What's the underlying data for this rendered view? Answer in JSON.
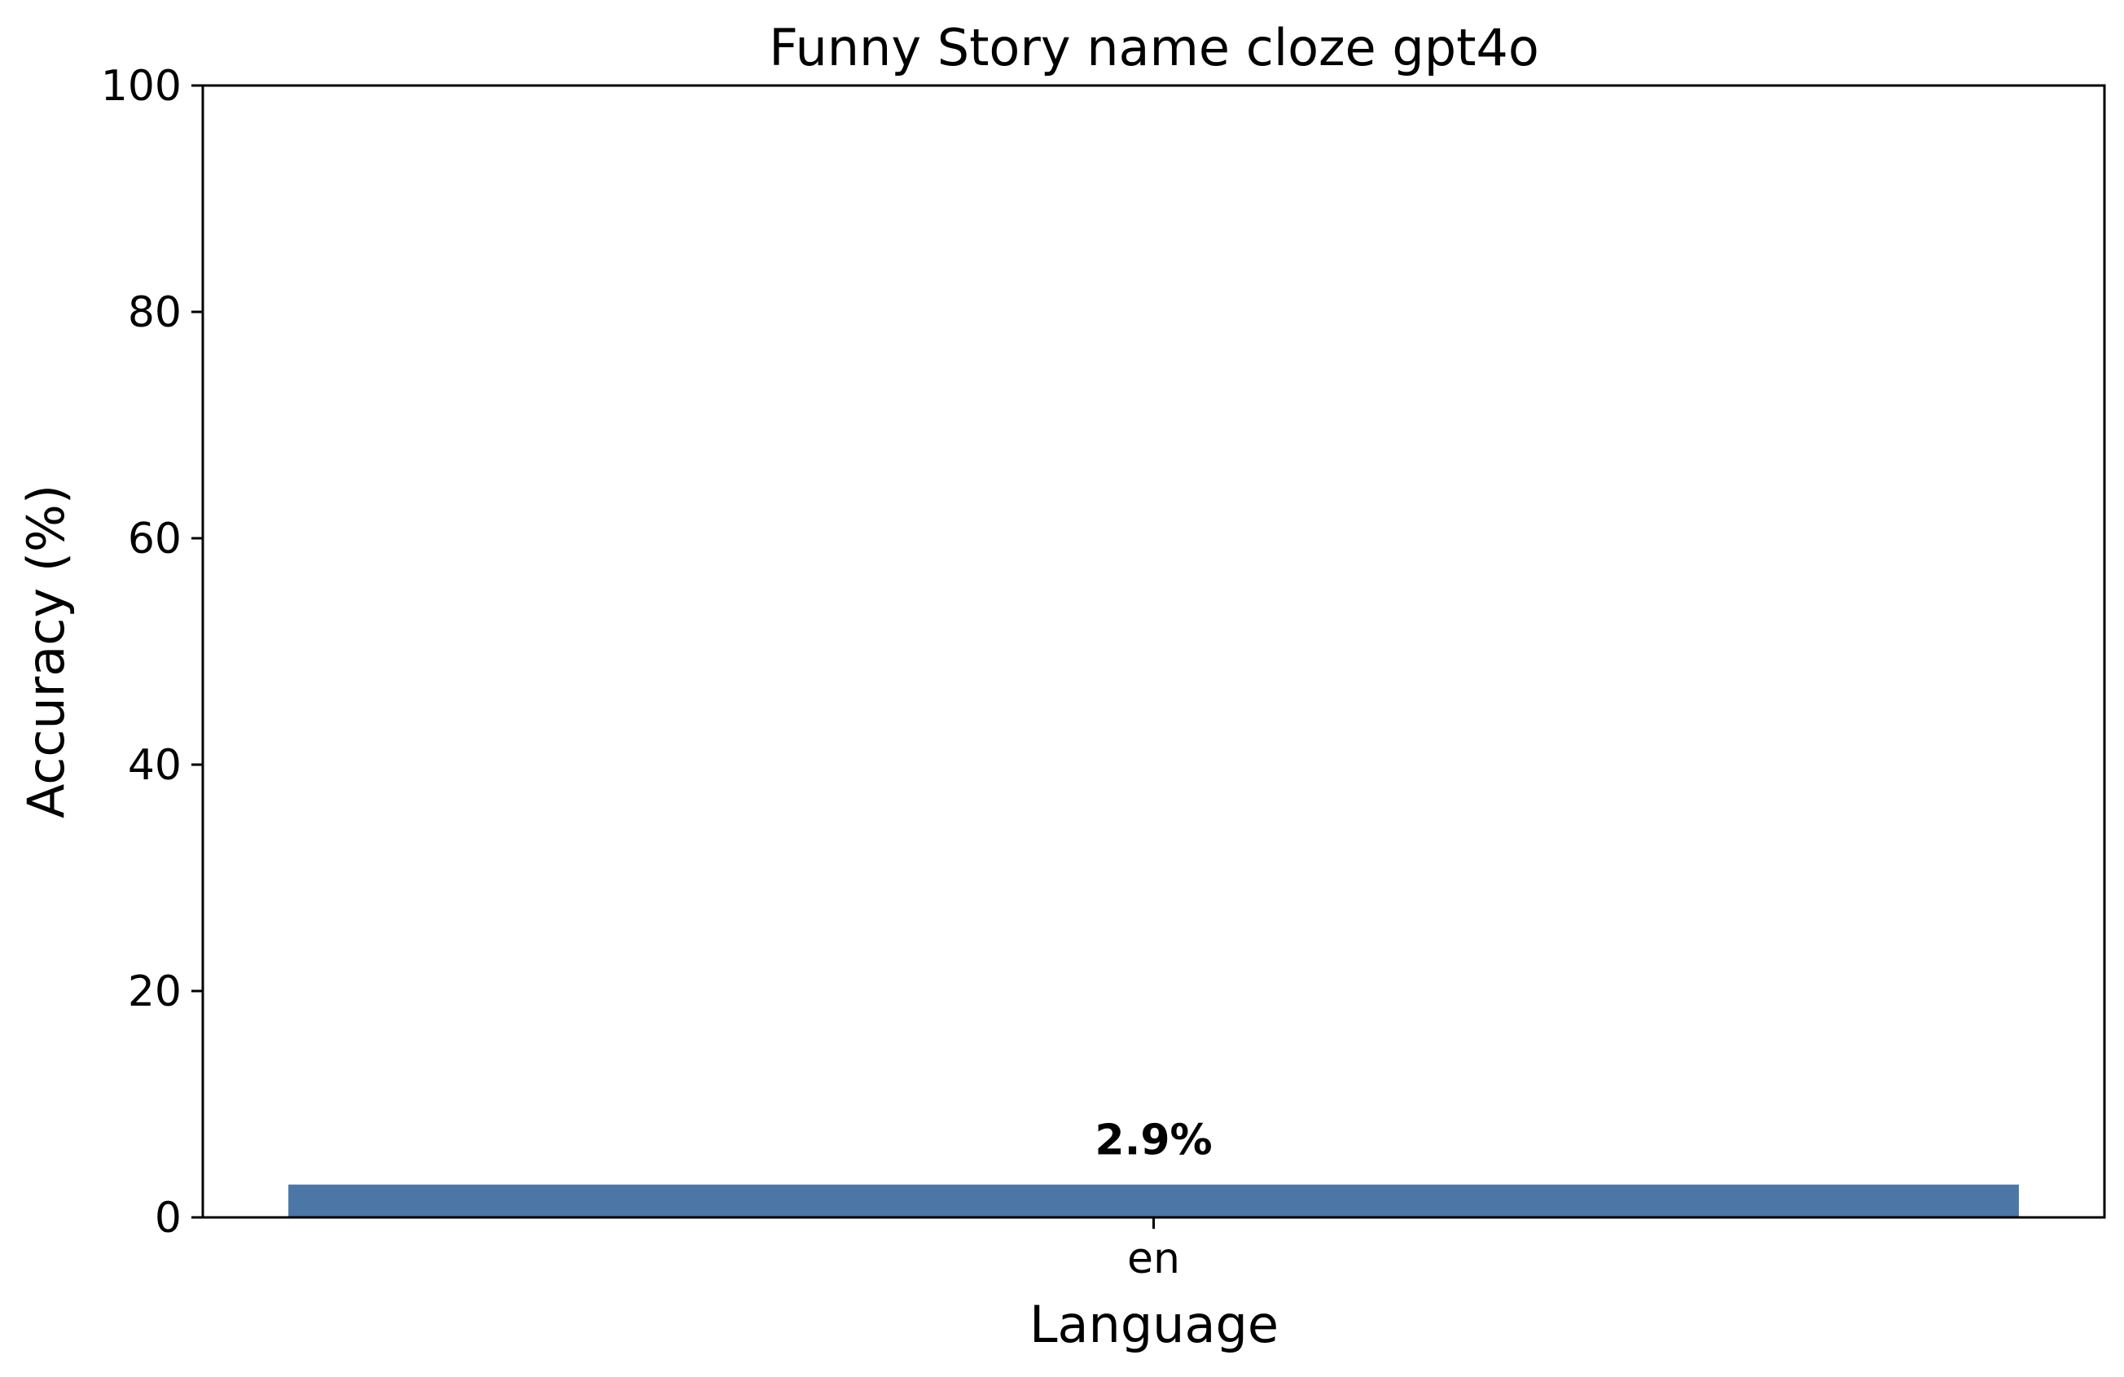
{
  "chart_data": {
    "type": "bar",
    "title": "Funny Story name cloze gpt4o",
    "xlabel": "Language",
    "ylabel": "Accuracy (%)",
    "categories": [
      "en"
    ],
    "values": [
      2.9
    ],
    "value_labels": [
      "2.9%"
    ],
    "ylim": [
      0,
      100
    ],
    "yticks": [
      0,
      20,
      40,
      60,
      80,
      100
    ],
    "grid": false,
    "legend": "none",
    "bar_color": "#4c76a6"
  }
}
